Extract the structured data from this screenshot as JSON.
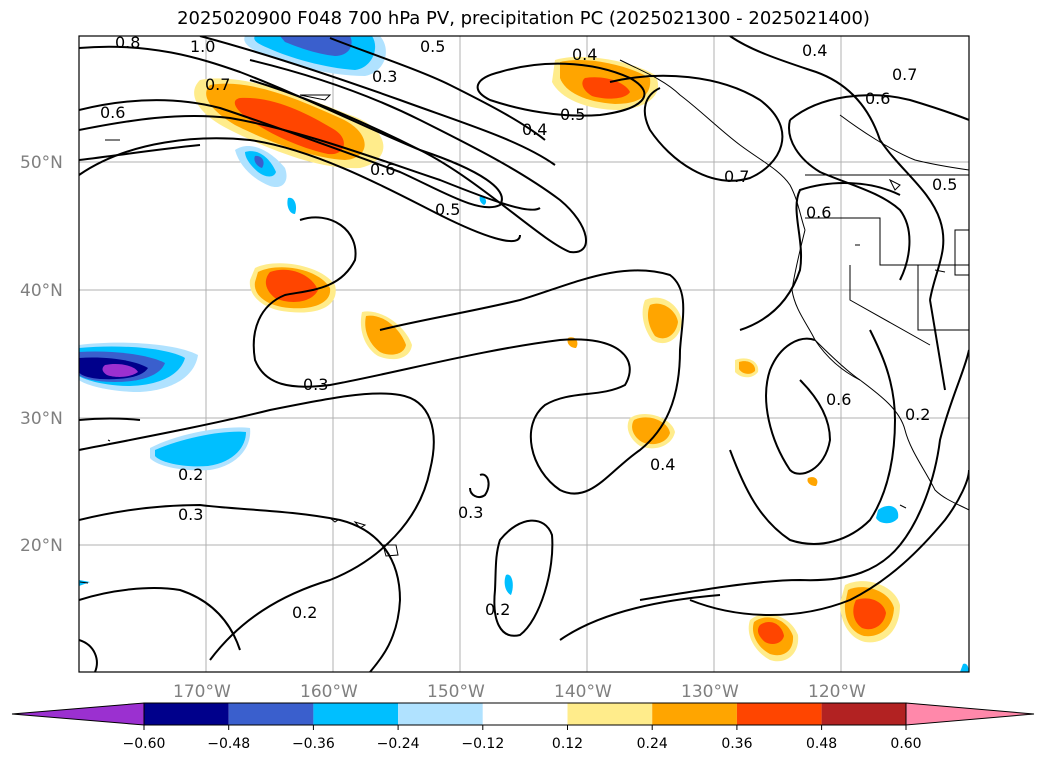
{
  "title": "2025020900 F048 700 hPa PV, precipitation PC (2025021300 - 2025021400)",
  "map": {
    "lat_labels": [
      "50°N",
      "40°N",
      "30°N",
      "20°N"
    ],
    "lon_labels": [
      "170°W",
      "160°W",
      "150°W",
      "140°W",
      "130°W",
      "120°W"
    ],
    "contour_labels": [
      "0.8",
      "1.0",
      "0.5",
      "0.4",
      "0.4",
      "0.7",
      "0.6",
      "0.6",
      "0.5",
      "0.4",
      "0.7",
      "0.6",
      "0.5",
      "0.7",
      "0.6",
      "0.5",
      "0.3",
      "0.2",
      "0.3",
      "0.3",
      "0.2",
      "0.2",
      "0.4",
      "0.6",
      "0.2",
      "0.3"
    ]
  },
  "colorbar": {
    "ticks": [
      "−0.60",
      "−0.48",
      "−0.36",
      "−0.24",
      "−0.12",
      "0.12",
      "0.24",
      "0.36",
      "0.48",
      "0.60"
    ],
    "colors": [
      "#9b30d0",
      "#00008b",
      "#3a5fcd",
      "#00bfff",
      "#b0e2ff",
      "#ffffff",
      "#ffec8b",
      "#ffa500",
      "#ff4500",
      "#b22222",
      "#ff88aa"
    ]
  }
}
